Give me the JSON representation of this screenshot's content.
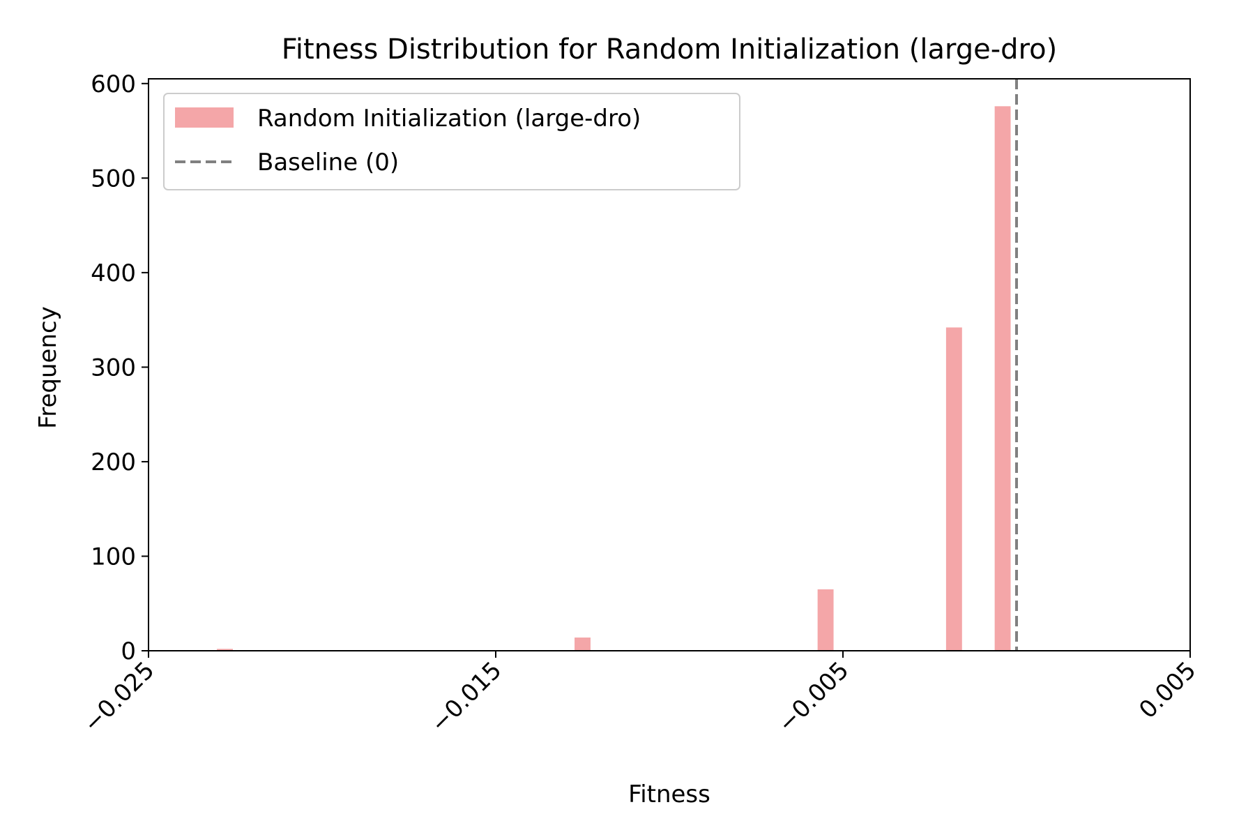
{
  "chart_data": {
    "type": "bar",
    "title": "Fitness Distribution for Random Initialization (large-dro)",
    "xlabel": "Fitness",
    "ylabel": "Frequency",
    "xlim": [
      -0.025,
      0.005
    ],
    "ylim": [
      0,
      605
    ],
    "xticks": [
      -0.025,
      -0.015,
      -0.005,
      0.005
    ],
    "xtick_labels": [
      "−0.025",
      "−0.015",
      "−0.005",
      "0.005"
    ],
    "yticks": [
      0,
      100,
      200,
      300,
      400,
      500,
      600
    ],
    "ytick_labels": [
      "0",
      "100",
      "200",
      "300",
      "400",
      "500",
      "600"
    ],
    "bin_width": 0.00046,
    "series": [
      {
        "name": "Random Initialization (large-dro)",
        "color": "#f4a6a8",
        "bins": [
          {
            "x": -0.0228,
            "count": 2
          },
          {
            "x": -0.0125,
            "count": 14
          },
          {
            "x": -0.0055,
            "count": 65
          },
          {
            "x": -0.0018,
            "count": 342
          },
          {
            "x": -0.0004,
            "count": 576
          }
        ]
      }
    ],
    "reference_line": {
      "name": "Baseline (0)",
      "x": 0,
      "style": "dashed",
      "color": "#808080"
    },
    "legend": {
      "position": "top-left",
      "entries": [
        {
          "label": "Random Initialization (large-dro)",
          "kind": "patch",
          "color": "#f4a6a8"
        },
        {
          "label": "Baseline (0)",
          "kind": "dashed-line",
          "color": "#808080"
        }
      ]
    },
    "grid": false,
    "xtick_rotation": 45
  }
}
